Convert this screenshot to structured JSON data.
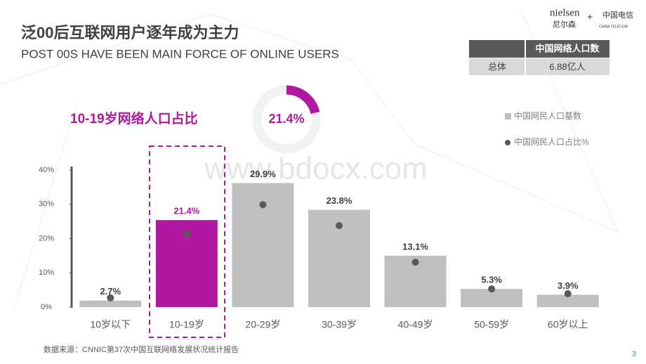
{
  "header": {
    "title": "泛00后互联网用户逐年成为主力",
    "subtitle": "POST 00S HAVE BEEN MAIN FORCE OF ONLINE USERS"
  },
  "logos": {
    "nielsen": "nielsen",
    "nielsen_cn": "尼尔森",
    "plus": "+",
    "telecom": "中国电信",
    "telecom_en": "CHINA TELECOM"
  },
  "table": {
    "header": "中国网络人口数",
    "rows": [
      [
        "总体",
        "6.88亿人"
      ]
    ]
  },
  "highlight": "10-19岁网络人口占比",
  "watermark": "www.bdocx.com",
  "chart_data": [
    {
      "type": "bar",
      "categories": [
        "10岁以下",
        "10-19岁",
        "20-29岁",
        "30-39岁",
        "40-49岁",
        "50-59岁",
        "60岁以上"
      ],
      "series": [
        {
          "name": "中国网民人口基数",
          "kind": "bar",
          "color": "#bfbfbf",
          "colors": [
            "#bfbfbf",
            "#b0189f",
            "#bfbfbf",
            "#bfbfbf",
            "#bfbfbf",
            "#bfbfbf",
            "#bfbfbf"
          ],
          "values": [
            1.9,
            25.4,
            36.2,
            28.4,
            15.0,
            5.3,
            3.6
          ]
        },
        {
          "name": "中国网民人口占比%",
          "kind": "dot",
          "color": "#595959",
          "values": [
            2.7,
            21.4,
            29.9,
            23.8,
            13.1,
            5.3,
            3.9
          ],
          "value_labels": [
            "2.7%",
            "21.4%",
            "29.9%",
            "23.8%",
            "13.1%",
            "5.3%",
            "3.9%"
          ]
        }
      ],
      "ylim": [
        0,
        40
      ],
      "yticks": [
        {
          "value": 0,
          "label": "0%"
        },
        {
          "value": 10,
          "label": "10%"
        },
        {
          "value": 20,
          "label": "20%"
        },
        {
          "value": 30,
          "label": "30%"
        },
        {
          "value": 40,
          "label": "40%"
        }
      ],
      "grid": false,
      "legend": "top-right"
    },
    {
      "type": "pie",
      "values": [
        21.4
      ],
      "value_labels": [
        "21.4%"
      ],
      "color": "#b0189f",
      "ylim": [
        0,
        100
      ]
    }
  ],
  "source": "数据来源：CNNIC第37次中国互联网络发展状况统计报告",
  "page_number": "3"
}
